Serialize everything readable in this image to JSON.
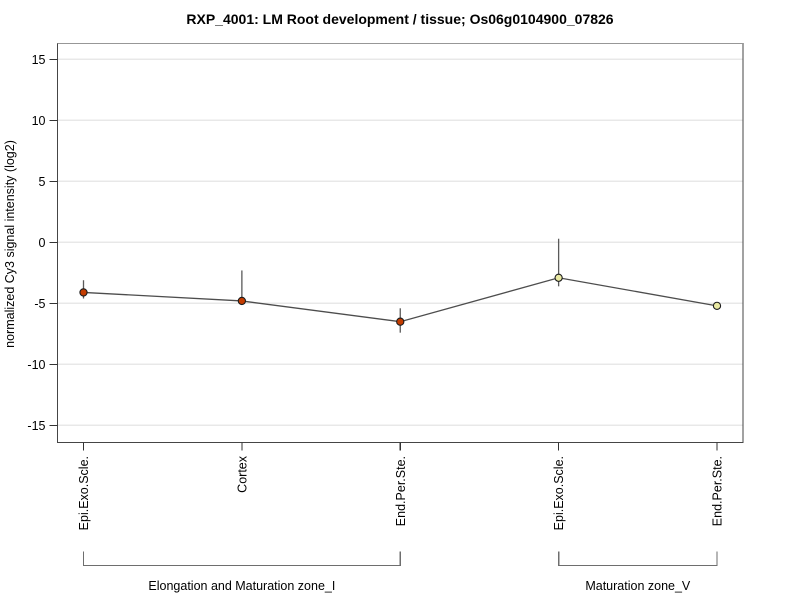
{
  "title": "RXP_4001: LM Root development / tissue; Os06g0104900_07826",
  "chart_data": {
    "type": "line",
    "title": "RXP_4001: LM Root development / tissue; Os06g0104900_07826",
    "xlabel": "",
    "ylabel": "normalized Cy3 signal intensity (log2)",
    "ylim": [
      -16.4,
      16.3
    ],
    "yticks": [
      15,
      10,
      5,
      0,
      -5,
      -10,
      -15
    ],
    "grid": true,
    "legend": "none",
    "categories": [
      "Epi.Exo.Scle.",
      "Cortex",
      "End.Per.Ste.",
      "Epi.Exo.Scle.",
      "End.Per.Ste."
    ],
    "series": [
      {
        "name": "normalized Cy3 signal intensity",
        "values": [
          -4.1,
          -4.8,
          -6.5,
          -2.9,
          -5.2
        ],
        "error_low": [
          -4.6,
          -4.9,
          -7.4,
          -3.6,
          -5.2
        ],
        "error_high": [
          -3.1,
          -2.3,
          -5.4,
          0.3,
          -5.2
        ]
      }
    ],
    "point_colors": [
      "#c43c00",
      "#c43c00",
      "#c43c00",
      "#e9e9a2",
      "#e9e9a2"
    ],
    "groups": [
      {
        "label": "Elongation and Maturation zone_I",
        "from": 0,
        "to": 2
      },
      {
        "label": "Maturation zone_V",
        "from": 3,
        "to": 4
      }
    ]
  },
  "colors": {
    "frame": "#454545",
    "frame_top": "#979797",
    "grid": "#e8e8e8",
    "tick": "#333333",
    "series_line": "#4d4d4d",
    "whisker": "#5a5a5a",
    "marker_stroke": "#1c1c1c",
    "bracket": "#6e6e6e",
    "text": "#000000"
  }
}
